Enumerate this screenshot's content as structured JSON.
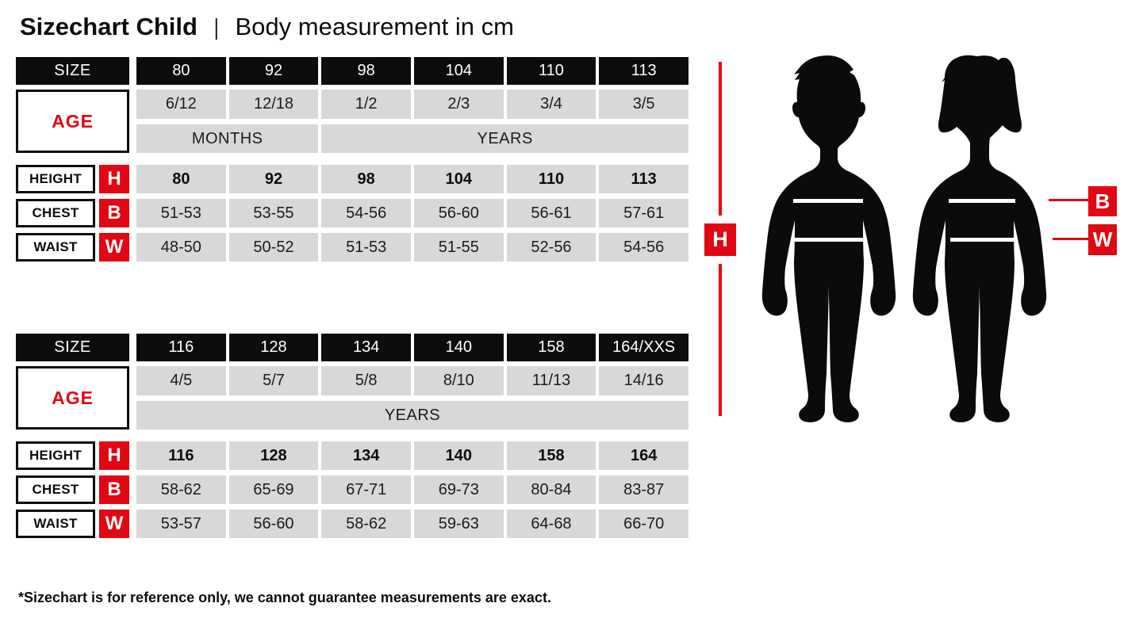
{
  "title": {
    "main": "Sizechart Child",
    "separator": "|",
    "subtitle": "Body measurement in cm"
  },
  "colors": {
    "accent_red": "#e30613",
    "table_black": "#0d0d0d",
    "cell_gray": "#d8d8d8"
  },
  "tables": [
    {
      "size_label": "SIZE",
      "age_label": "AGE",
      "sizes": [
        "80",
        "92",
        "98",
        "104",
        "110",
        "113"
      ],
      "ages": [
        "6/12",
        "12/18",
        "1/2",
        "2/3",
        "3/4",
        "3/5"
      ],
      "age_units": [
        {
          "label": "MONTHS",
          "span": 2
        },
        {
          "label": "YEARS",
          "span": 4
        }
      ],
      "rows": [
        {
          "label": "HEIGHT",
          "letter": "H",
          "bold": true,
          "values": [
            "80",
            "92",
            "98",
            "104",
            "110",
            "113"
          ]
        },
        {
          "label": "CHEST",
          "letter": "B",
          "bold": false,
          "values": [
            "51-53",
            "53-55",
            "54-56",
            "56-60",
            "56-61",
            "57-61"
          ]
        },
        {
          "label": "WAIST",
          "letter": "W",
          "bold": false,
          "values": [
            "48-50",
            "50-52",
            "51-53",
            "51-55",
            "52-56",
            "54-56"
          ]
        }
      ]
    },
    {
      "size_label": "SIZE",
      "age_label": "AGE",
      "sizes": [
        "116",
        "128",
        "134",
        "140",
        "158",
        "164/XXS"
      ],
      "ages": [
        "4/5",
        "5/7",
        "5/8",
        "8/10",
        "11/13",
        "14/16"
      ],
      "age_units": [
        {
          "label": "YEARS",
          "span": 6
        }
      ],
      "rows": [
        {
          "label": "HEIGHT",
          "letter": "H",
          "bold": true,
          "values": [
            "116",
            "128",
            "134",
            "140",
            "158",
            "164"
          ]
        },
        {
          "label": "CHEST",
          "letter": "B",
          "bold": false,
          "values": [
            "58-62",
            "65-69",
            "67-71",
            "69-73",
            "80-84",
            "83-87"
          ]
        },
        {
          "label": "WAIST",
          "letter": "W",
          "bold": false,
          "values": [
            "53-57",
            "56-60",
            "58-62",
            "59-63",
            "64-68",
            "66-70"
          ]
        }
      ]
    }
  ],
  "diagram": {
    "height_label": "H",
    "chest_label": "B",
    "waist_label": "W"
  },
  "footnote": "*Sizechart is for reference only, we cannot guarantee measurements are exact."
}
